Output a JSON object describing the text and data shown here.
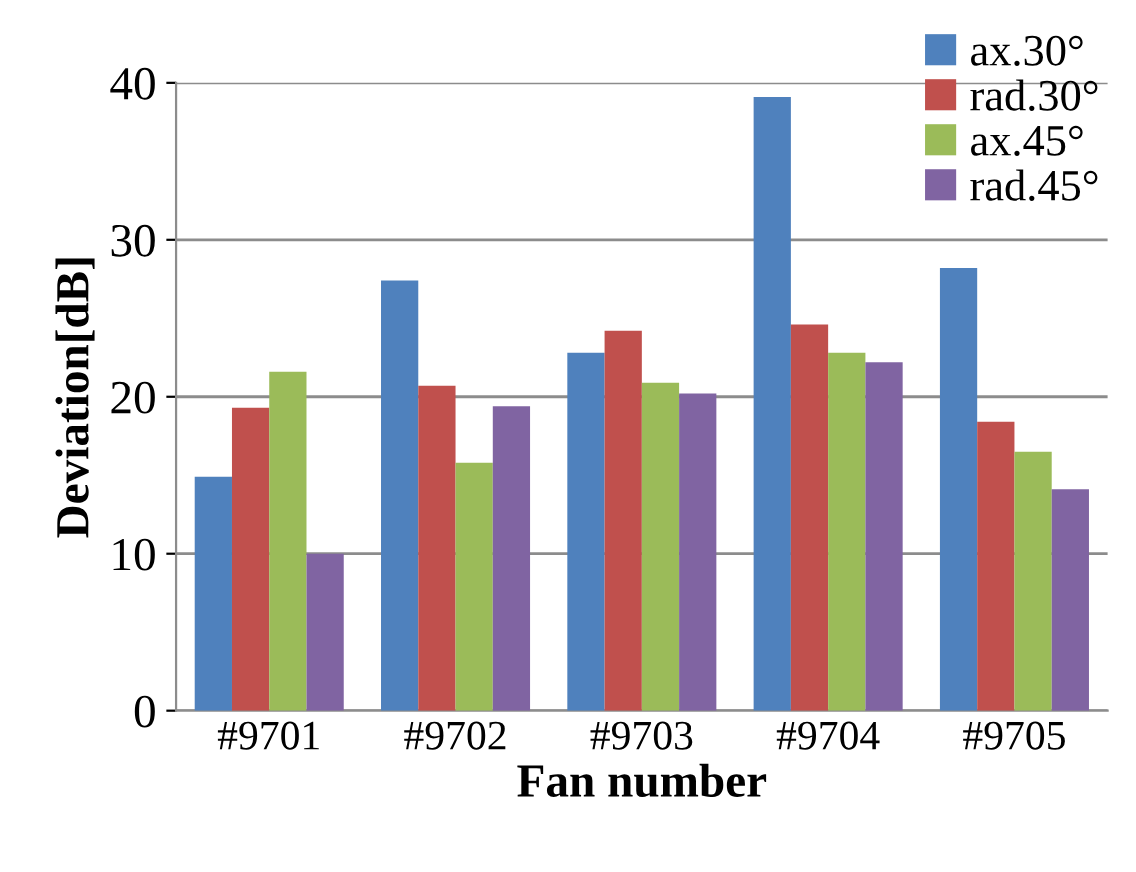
{
  "chart_data": {
    "type": "bar",
    "xlabel": "Fan number",
    "ylabel": "Deviation[dB]",
    "categories": [
      "#9701",
      "#9702",
      "#9703",
      "#9704",
      "#9705"
    ],
    "series": [
      {
        "name": "ax.30°",
        "color": "#4f81bd",
        "values": [
          14.9,
          27.4,
          22.8,
          39.1,
          28.2
        ]
      },
      {
        "name": "rad.30°",
        "color": "#c0504d",
        "values": [
          19.3,
          20.7,
          24.2,
          24.6,
          18.4
        ]
      },
      {
        "name": "ax.45°",
        "color": "#9bbb59",
        "values": [
          21.6,
          15.8,
          20.9,
          22.8,
          16.5
        ]
      },
      {
        "name": "rad.45°",
        "color": "#8064a2",
        "values": [
          10,
          19.4,
          20.2,
          22.2,
          14.1
        ]
      }
    ],
    "ylim": [
      0,
      40
    ],
    "yticks": [
      0,
      10,
      20,
      30,
      40
    ],
    "grid": "y",
    "legend": "top right"
  }
}
